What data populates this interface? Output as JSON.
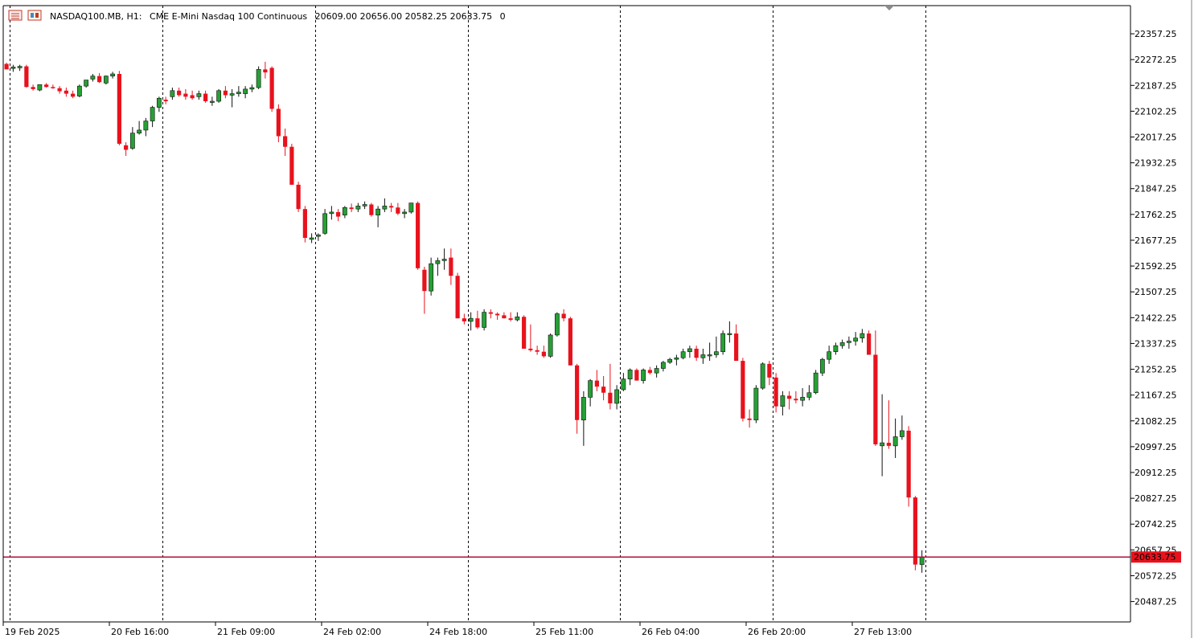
{
  "header": {
    "symbol": "NASDAQ100.MB, H1:",
    "description": "CME E-Mini Nasdaq 100 Continuous",
    "ohlc": "20609.00 20656.00 20582.25 20633.75",
    "volume": "0"
  },
  "colors": {
    "bull": "#26a035",
    "bear": "#e8121d",
    "grid": "#000000",
    "price_line": "#b0103a",
    "price_label_bg": "#e8121d",
    "price_label_text": "#ffffff"
  },
  "icons": [
    "chart-window-icon",
    "indicator-list-icon",
    "shift-marker-icon"
  ],
  "chart_data": {
    "type": "candlestick",
    "timeframe": "H1",
    "y_ticks": [
      22357.25,
      22272.25,
      22187.25,
      22102.25,
      22017.25,
      21932.25,
      21847.25,
      21762.25,
      21677.25,
      21592.25,
      21507.25,
      21422.25,
      21337.25,
      21252.25,
      21167.25,
      21082.25,
      20997.25,
      20912.25,
      20827.25,
      20742.25,
      20657.25,
      20572.25,
      20487.25
    ],
    "y_range": [
      20420,
      22450
    ],
    "x_labels": [
      "19 Feb 2025",
      "20 Feb 16:00",
      "21 Feb 09:00",
      "24 Feb 02:00",
      "24 Feb 18:00",
      "25 Feb 11:00",
      "26 Feb 04:00",
      "26 Feb 20:00",
      "27 Feb 13:00"
    ],
    "x_label_index": [
      0,
      16,
      32,
      48,
      64,
      80,
      96,
      112,
      128
    ],
    "separator_index": [
      1,
      24,
      47,
      70,
      93,
      116,
      139
    ],
    "current_price": "20633.75",
    "current_price_value": 20633.75,
    "candles": [
      [
        22258,
        22262,
        22240,
        22240
      ],
      [
        22243,
        22255,
        22232,
        22248
      ],
      [
        22245,
        22255,
        22235,
        22250
      ],
      [
        22250,
        22255,
        22180,
        22182
      ],
      [
        22182,
        22190,
        22170,
        22175
      ],
      [
        22172,
        22190,
        22168,
        22190
      ],
      [
        22190,
        22195,
        22180,
        22182
      ],
      [
        22182,
        22190,
        22176,
        22180
      ],
      [
        22178,
        22185,
        22160,
        22168
      ],
      [
        22170,
        22180,
        22150,
        22160
      ],
      [
        22160,
        22170,
        22145,
        22150
      ],
      [
        22152,
        22190,
        22148,
        22185
      ],
      [
        22185,
        22205,
        22180,
        22205
      ],
      [
        22208,
        22225,
        22200,
        22218
      ],
      [
        22218,
        22228,
        22195,
        22198
      ],
      [
        22195,
        22220,
        22190,
        22218
      ],
      [
        22218,
        22232,
        22210,
        22225
      ],
      [
        22225,
        22235,
        21990,
        21995
      ],
      [
        21990,
        22000,
        21955,
        21975
      ],
      [
        21980,
        22050,
        21975,
        22030
      ],
      [
        22030,
        22070,
        22025,
        22040
      ],
      [
        22040,
        22080,
        22020,
        22070
      ],
      [
        22070,
        22120,
        22050,
        22115
      ],
      [
        22115,
        22150,
        22100,
        22145
      ],
      [
        22140,
        22150,
        22125,
        22135
      ],
      [
        22150,
        22180,
        22140,
        22170
      ],
      [
        22170,
        22180,
        22150,
        22155
      ],
      [
        22160,
        22175,
        22140,
        22150
      ],
      [
        22155,
        22170,
        22140,
        22145
      ],
      [
        22150,
        22170,
        22140,
        22160
      ],
      [
        22160,
        22170,
        22130,
        22135
      ],
      [
        22135,
        22150,
        22120,
        22135
      ],
      [
        22135,
        22175,
        22130,
        22170
      ],
      [
        22170,
        22185,
        22145,
        22155
      ],
      [
        22155,
        22175,
        22115,
        22160
      ],
      [
        22160,
        22185,
        22150,
        22165
      ],
      [
        22160,
        22185,
        22145,
        22175
      ],
      [
        22175,
        22190,
        22165,
        22180
      ],
      [
        22180,
        22250,
        22175,
        22240
      ],
      [
        22240,
        22265,
        22210,
        22230
      ],
      [
        22245,
        22250,
        22100,
        22110
      ],
      [
        22110,
        22125,
        22000,
        22020
      ],
      [
        22020,
        22045,
        21955,
        21985
      ],
      [
        21985,
        21995,
        21860,
        21860
      ],
      [
        21860,
        21870,
        21770,
        21780
      ],
      [
        21780,
        21790,
        21670,
        21685
      ],
      [
        21680,
        21700,
        21668,
        21685
      ],
      [
        21690,
        21700,
        21675,
        21695
      ],
      [
        21700,
        21780,
        21695,
        21765
      ],
      [
        21765,
        21790,
        21745,
        21770
      ],
      [
        21770,
        21780,
        21740,
        21755
      ],
      [
        21760,
        21790,
        21750,
        21785
      ],
      [
        21785,
        21798,
        21770,
        21780
      ],
      [
        21780,
        21800,
        21770,
        21790
      ],
      [
        21790,
        21805,
        21780,
        21795
      ],
      [
        21795,
        21800,
        21755,
        21760
      ],
      [
        21760,
        21790,
        21720,
        21780
      ],
      [
        21780,
        21815,
        21770,
        21790
      ],
      [
        21790,
        21800,
        21770,
        21785
      ],
      [
        21785,
        21800,
        21760,
        21765
      ],
      [
        21765,
        21780,
        21750,
        21770
      ],
      [
        21770,
        21800,
        21765,
        21800
      ],
      [
        21800,
        21805,
        21580,
        21585
      ],
      [
        21580,
        21590,
        21435,
        21510
      ],
      [
        21510,
        21620,
        21495,
        21600
      ],
      [
        21600,
        21620,
        21560,
        21610
      ],
      [
        21610,
        21650,
        21580,
        21615
      ],
      [
        21620,
        21650,
        21530,
        21560
      ],
      [
        21560,
        21570,
        21420,
        21420
      ],
      [
        21420,
        21435,
        21400,
        21410
      ],
      [
        21410,
        21440,
        21380,
        21420
      ],
      [
        21420,
        21445,
        21385,
        21390
      ],
      [
        21390,
        21450,
        21380,
        21440
      ],
      [
        21440,
        21450,
        21420,
        21435
      ],
      [
        21435,
        21440,
        21415,
        21430
      ],
      [
        21430,
        21440,
        21420,
        21420
      ],
      [
        21420,
        21440,
        21410,
        21415
      ],
      [
        21415,
        21440,
        21410,
        21425
      ],
      [
        21425,
        21430,
        21320,
        21320
      ],
      [
        21320,
        21400,
        21310,
        21315
      ],
      [
        21315,
        21330,
        21300,
        21310
      ],
      [
        21310,
        21330,
        21290,
        21295
      ],
      [
        21295,
        21370,
        21290,
        21365
      ],
      [
        21365,
        21440,
        21360,
        21435
      ],
      [
        21435,
        21450,
        21410,
        21420
      ],
      [
        21420,
        21425,
        21265,
        21265
      ],
      [
        21265,
        21270,
        21040,
        21085
      ],
      [
        21085,
        21180,
        21000,
        21160
      ],
      [
        21160,
        21220,
        21130,
        21215
      ],
      [
        21215,
        21250,
        21180,
        21195
      ],
      [
        21195,
        21230,
        21150,
        21175
      ],
      [
        21175,
        21270,
        21120,
        21140
      ],
      [
        21140,
        21200,
        21120,
        21185
      ],
      [
        21185,
        21240,
        21180,
        21220
      ],
      [
        21220,
        21255,
        21200,
        21250
      ],
      [
        21250,
        21255,
        21215,
        21215
      ],
      [
        21215,
        21255,
        21205,
        21250
      ],
      [
        21250,
        21260,
        21235,
        21240
      ],
      [
        21240,
        21265,
        21225,
        21255
      ],
      [
        21255,
        21280,
        21245,
        21275
      ],
      [
        21275,
        21290,
        21270,
        21285
      ],
      [
        21285,
        21300,
        21265,
        21290
      ],
      [
        21290,
        21320,
        21285,
        21310
      ],
      [
        21310,
        21330,
        21290,
        21320
      ],
      [
        21320,
        21330,
        21280,
        21290
      ],
      [
        21290,
        21320,
        21270,
        21300
      ],
      [
        21300,
        21340,
        21280,
        21300
      ],
      [
        21300,
        21360,
        21290,
        21310
      ],
      [
        21310,
        21380,
        21300,
        21370
      ],
      [
        21370,
        21410,
        21340,
        21370
      ],
      [
        21370,
        21400,
        21280,
        21280
      ],
      [
        21280,
        21290,
        21080,
        21090
      ],
      [
        21090,
        21120,
        21060,
        21085
      ],
      [
        21085,
        21200,
        21075,
        21190
      ],
      [
        21190,
        21275,
        21185,
        21270
      ],
      [
        21270,
        21280,
        21200,
        21225
      ],
      [
        21225,
        21240,
        21110,
        21130
      ],
      [
        21130,
        21180,
        21100,
        21165
      ],
      [
        21165,
        21180,
        21120,
        21155
      ],
      [
        21155,
        21180,
        21140,
        21150
      ],
      [
        21150,
        21190,
        21130,
        21160
      ],
      [
        21160,
        21200,
        21150,
        21175
      ],
      [
        21175,
        21250,
        21170,
        21240
      ],
      [
        21240,
        21290,
        21230,
        21285
      ],
      [
        21285,
        21330,
        21270,
        21310
      ],
      [
        21310,
        21340,
        21300,
        21330
      ],
      [
        21330,
        21350,
        21320,
        21340
      ],
      [
        21340,
        21360,
        21320,
        21345
      ],
      [
        21345,
        21375,
        21330,
        21355
      ],
      [
        21355,
        21385,
        21340,
        21370
      ],
      [
        21370,
        21380,
        21300,
        21300
      ],
      [
        21300,
        21380,
        21000,
        21005
      ],
      [
        21000,
        21170,
        20900,
        21010
      ],
      [
        21010,
        21150,
        20990,
        21000
      ],
      [
        21000,
        21090,
        20960,
        21030
      ],
      [
        21030,
        21100,
        21020,
        21050
      ],
      [
        21050,
        21065,
        20800,
        20830
      ],
      [
        20830,
        20835,
        20590,
        20609
      ],
      [
        20609,
        20656,
        20582,
        20634
      ]
    ]
  }
}
